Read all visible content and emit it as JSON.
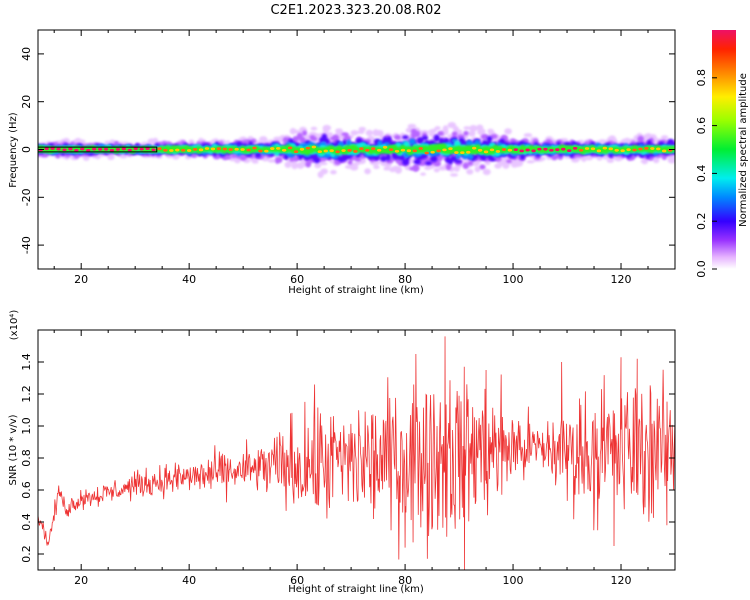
{
  "title": "C2E1.2023.323.20.08.R02",
  "colors": {
    "snr_line": "#ee3333",
    "spectrogram_core": "#ee1166",
    "background": "#ffffff"
  },
  "chart_data": [
    {
      "type": "heatmap",
      "xlabel": "Height of straight line (km)",
      "ylabel": "Frequency (Hz)",
      "xlim": [
        12,
        130
      ],
      "ylim": [
        -50,
        50
      ],
      "xticks": [
        20,
        40,
        60,
        80,
        100,
        120
      ],
      "yticks": [
        -40,
        -20,
        0,
        20,
        40
      ],
      "ytick_labels": [
        "-40",
        "-20",
        "0",
        "20",
        "40"
      ],
      "grid": false,
      "reference_line": {
        "y_from": -1,
        "y_to": 1,
        "x_from": 12,
        "x_to": 34
      },
      "bandwidth_profile": {
        "x": [
          12,
          20,
          30,
          34,
          40,
          50,
          55,
          60,
          65,
          70,
          75,
          80,
          85,
          90,
          95,
          100,
          105,
          110,
          115,
          120,
          125,
          130
        ],
        "half_width_hz": [
          3,
          3,
          2,
          3,
          3,
          4,
          5,
          7,
          9,
          8,
          7,
          9,
          10,
          10,
          8,
          6,
          4,
          4,
          4,
          4,
          5,
          5
        ]
      },
      "colorbar": {
        "label": "Normalized spectral amplitude",
        "range": [
          0,
          1
        ],
        "ticks": [
          0.0,
          0.2,
          0.4,
          0.6,
          0.8
        ],
        "tick_labels": [
          "0.0",
          "0.2",
          "0.4",
          "0.6",
          "0.8"
        ]
      }
    },
    {
      "type": "line",
      "xlabel": "Height of straight line (km)",
      "ylabel": "SNR (10 * v/v)",
      "y_multiplier_label": "(x10⁴)",
      "xlim": [
        12,
        130
      ],
      "ylim": [
        0.1,
        1.6
      ],
      "xticks": [
        20,
        40,
        60,
        80,
        100,
        120
      ],
      "yticks": [
        0.2,
        0.4,
        0.6,
        0.8,
        1.0,
        1.2,
        1.4
      ],
      "ytick_labels": [
        "0.2",
        "0.4",
        "0.6",
        "0.8",
        "1.0",
        "1.2",
        "1.4"
      ],
      "series": [
        {
          "color": "#ee3333",
          "trend": {
            "x": [
              12,
              13,
              14,
              15,
              16,
              17,
              18,
              20,
              25,
              30,
              35,
              40,
              45,
              50,
              55,
              60,
              65,
              70,
              75,
              80,
              85,
              90,
              95,
              100,
              105,
              110,
              115,
              120,
              125,
              130
            ],
            "y": [
              0.45,
              0.35,
              0.27,
              0.45,
              0.6,
              0.48,
              0.5,
              0.55,
              0.58,
              0.63,
              0.66,
              0.68,
              0.7,
              0.72,
              0.74,
              0.76,
              0.77,
              0.78,
              0.78,
              0.8,
              0.82,
              0.84,
              0.85,
              0.87,
              0.86,
              0.84,
              0.84,
              0.84,
              0.86,
              0.86
            ]
          },
          "spread": {
            "x": [
              12,
              20,
              30,
              40,
              50,
              55,
              60,
              65,
              70,
              75,
              80,
              85,
              90,
              95,
              100,
              105,
              110,
              115,
              120,
              125,
              130
            ],
            "y": [
              0.03,
              0.04,
              0.05,
              0.07,
              0.09,
              0.12,
              0.2,
              0.24,
              0.22,
              0.26,
              0.3,
              0.33,
              0.32,
              0.26,
              0.18,
              0.1,
              0.2,
              0.26,
              0.28,
              0.26,
              0.24
            ]
          },
          "peaks": [
            {
              "x": 87.4,
              "y": 1.56
            },
            {
              "x": 91.0,
              "y": 0.1
            },
            {
              "x": 82.0,
              "y": 1.45
            },
            {
              "x": 120.0,
              "y": 1.43
            },
            {
              "x": 109.0,
              "y": 1.4
            },
            {
              "x": 123.0,
              "y": 1.42
            },
            {
              "x": 95.0,
              "y": 1.35
            },
            {
              "x": 118.7,
              "y": 0.25
            },
            {
              "x": 80.0,
              "y": 0.24
            },
            {
              "x": 128.5,
              "y": 0.38
            }
          ]
        }
      ]
    }
  ]
}
